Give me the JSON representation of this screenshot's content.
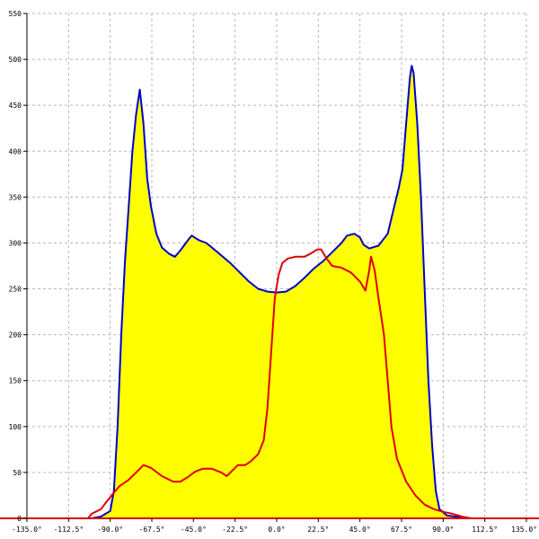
{
  "chart_data": {
    "type": "area",
    "title": "",
    "xlabel": "",
    "ylabel": "",
    "xlim": [
      -135,
      135
    ],
    "ylim": [
      0,
      550
    ],
    "grid": true,
    "x_ticks": [
      {
        "value": -135,
        "label": "-135.0°"
      },
      {
        "value": -112.5,
        "label": "-112.5°"
      },
      {
        "value": -90,
        "label": "-90.0°"
      },
      {
        "value": -67.5,
        "label": "-67.5°"
      },
      {
        "value": -45,
        "label": "-45.0°"
      },
      {
        "value": -22.5,
        "label": "-22.5°"
      },
      {
        "value": 0,
        "label": "0.0°"
      },
      {
        "value": 22.5,
        "label": "22.5°"
      },
      {
        "value": 45,
        "label": "45.0°"
      },
      {
        "value": 67.5,
        "label": "67.5°"
      },
      {
        "value": 90,
        "label": "90.0°"
      },
      {
        "value": 112.5,
        "label": "112.5°"
      },
      {
        "value": 135,
        "label": "135.0°"
      }
    ],
    "y_ticks": [
      {
        "value": 0,
        "label": "0"
      },
      {
        "value": 50,
        "label": "50"
      },
      {
        "value": 100,
        "label": "100"
      },
      {
        "value": 150,
        "label": "150"
      },
      {
        "value": 200,
        "label": "200"
      },
      {
        "value": 250,
        "label": "250"
      },
      {
        "value": 300,
        "label": "300"
      },
      {
        "value": 350,
        "label": "350"
      },
      {
        "value": 400,
        "label": "400"
      },
      {
        "value": 450,
        "label": "450"
      },
      {
        "value": 500,
        "label": "500"
      },
      {
        "value": 550,
        "label": "550"
      }
    ],
    "series": [
      {
        "color": "#0000cc",
        "fill": "#ffff00",
        "points": [
          [
            -135,
            0
          ],
          [
            -100,
            0
          ],
          [
            -95,
            2
          ],
          [
            -90,
            8
          ],
          [
            -88,
            30
          ],
          [
            -86,
            100
          ],
          [
            -84,
            200
          ],
          [
            -82,
            280
          ],
          [
            -80,
            340
          ],
          [
            -78,
            400
          ],
          [
            -76,
            440
          ],
          [
            -74,
            467
          ],
          [
            -72,
            430
          ],
          [
            -70,
            370
          ],
          [
            -68,
            340
          ],
          [
            -65,
            310
          ],
          [
            -62,
            295
          ],
          [
            -58,
            288
          ],
          [
            -55,
            285
          ],
          [
            -52,
            292
          ],
          [
            -48,
            303
          ],
          [
            -46,
            308
          ],
          [
            -42,
            303
          ],
          [
            -38,
            300
          ],
          [
            -32,
            290
          ],
          [
            -25,
            278
          ],
          [
            -20,
            268
          ],
          [
            -15,
            258
          ],
          [
            -10,
            250
          ],
          [
            -5,
            247
          ],
          [
            0,
            246
          ],
          [
            5,
            247
          ],
          [
            10,
            253
          ],
          [
            15,
            262
          ],
          [
            20,
            272
          ],
          [
            25,
            280
          ],
          [
            30,
            290
          ],
          [
            35,
            300
          ],
          [
            38,
            308
          ],
          [
            42,
            310
          ],
          [
            45,
            306
          ],
          [
            47,
            298
          ],
          [
            50,
            294
          ],
          [
            55,
            297
          ],
          [
            60,
            310
          ],
          [
            63,
            335
          ],
          [
            66,
            360
          ],
          [
            68,
            380
          ],
          [
            70,
            430
          ],
          [
            72,
            480
          ],
          [
            73,
            493
          ],
          [
            74,
            485
          ],
          [
            76,
            430
          ],
          [
            78,
            350
          ],
          [
            80,
            250
          ],
          [
            82,
            150
          ],
          [
            84,
            80
          ],
          [
            86,
            30
          ],
          [
            88,
            10
          ],
          [
            92,
            3
          ],
          [
            100,
            1
          ],
          [
            105,
            0
          ],
          [
            135,
            0
          ]
        ]
      },
      {
        "color": "#dd0000",
        "fill": "none",
        "points": [
          [
            -135,
            0
          ],
          [
            -102,
            0
          ],
          [
            -100,
            5
          ],
          [
            -95,
            10
          ],
          [
            -92,
            18
          ],
          [
            -88,
            28
          ],
          [
            -85,
            35
          ],
          [
            -80,
            42
          ],
          [
            -75,
            52
          ],
          [
            -72,
            58
          ],
          [
            -68,
            55
          ],
          [
            -62,
            46
          ],
          [
            -56,
            40
          ],
          [
            -52,
            40
          ],
          [
            -48,
            45
          ],
          [
            -44,
            51
          ],
          [
            -40,
            54
          ],
          [
            -35,
            54
          ],
          [
            -30,
            50
          ],
          [
            -27,
            46
          ],
          [
            -24,
            52
          ],
          [
            -21,
            58
          ],
          [
            -17,
            58
          ],
          [
            -14,
            62
          ],
          [
            -10,
            70
          ],
          [
            -7,
            85
          ],
          [
            -5,
            120
          ],
          [
            -3,
            180
          ],
          [
            -1,
            240
          ],
          [
            1,
            265
          ],
          [
            3,
            278
          ],
          [
            6,
            283
          ],
          [
            10,
            285
          ],
          [
            15,
            285
          ],
          [
            18,
            288
          ],
          [
            22,
            293
          ],
          [
            24,
            293
          ],
          [
            27,
            283
          ],
          [
            30,
            275
          ],
          [
            35,
            273
          ],
          [
            40,
            268
          ],
          [
            45,
            258
          ],
          [
            48,
            248
          ],
          [
            50,
            270
          ],
          [
            51,
            285
          ],
          [
            53,
            270
          ],
          [
            55,
            240
          ],
          [
            58,
            200
          ],
          [
            60,
            150
          ],
          [
            62,
            100
          ],
          [
            65,
            65
          ],
          [
            70,
            40
          ],
          [
            75,
            25
          ],
          [
            80,
            15
          ],
          [
            85,
            10
          ],
          [
            90,
            7
          ],
          [
            95,
            5
          ],
          [
            100,
            2
          ],
          [
            105,
            0
          ],
          [
            135,
            0
          ]
        ]
      }
    ]
  }
}
